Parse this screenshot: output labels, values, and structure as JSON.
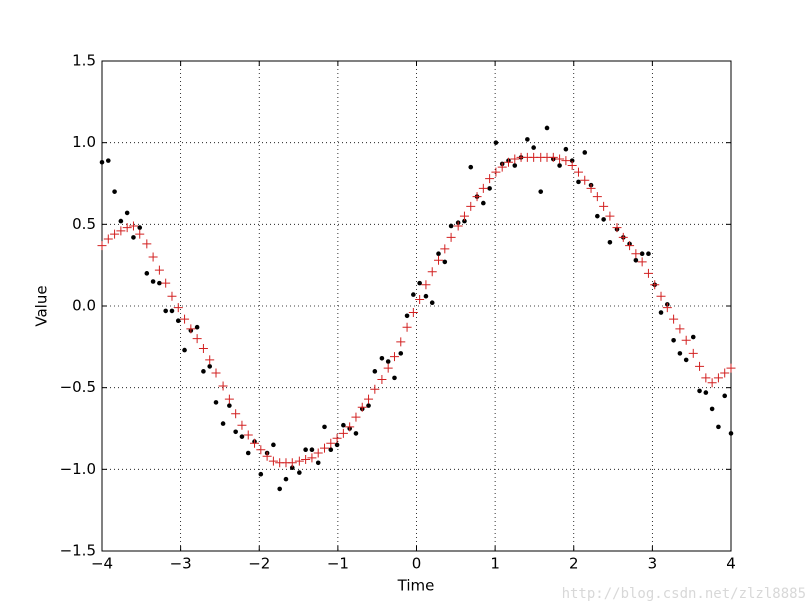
{
  "chart_data": {
    "type": "scatter",
    "x_label": "Time",
    "y_label": "Value",
    "watermark": "http://blog.csdn.net/zlzl8885",
    "x": [
      -4.0,
      -3.92,
      -3.84,
      -3.76,
      -3.68,
      -3.6,
      -3.52,
      -3.43,
      -3.35,
      -3.27,
      -3.19,
      -3.11,
      -3.03,
      -2.95,
      -2.87,
      -2.79,
      -2.71,
      -2.63,
      -2.55,
      -2.46,
      -2.38,
      -2.3,
      -2.22,
      -2.14,
      -2.06,
      -1.98,
      -1.9,
      -1.82,
      -1.74,
      -1.66,
      -1.58,
      -1.49,
      -1.41,
      -1.33,
      -1.25,
      -1.17,
      -1.09,
      -1.01,
      -0.93,
      -0.85,
      -0.77,
      -0.69,
      -0.61,
      -0.53,
      -0.44,
      -0.36,
      -0.28,
      -0.2,
      -0.12,
      -0.04,
      0.04,
      0.12,
      0.2,
      0.28,
      0.36,
      0.44,
      0.53,
      0.61,
      0.69,
      0.77,
      0.85,
      0.93,
      1.01,
      1.09,
      1.17,
      1.25,
      1.33,
      1.41,
      1.49,
      1.58,
      1.66,
      1.74,
      1.82,
      1.9,
      1.98,
      2.06,
      2.14,
      2.22,
      2.3,
      2.38,
      2.46,
      2.55,
      2.63,
      2.71,
      2.79,
      2.87,
      2.95,
      3.03,
      3.11,
      3.19,
      3.27,
      3.35,
      3.43,
      3.52,
      3.6,
      3.68,
      3.76,
      3.84,
      3.92,
      4.0
    ],
    "series": [
      {
        "color": "#000000",
        "marker": "dot",
        "values": [
          0.88,
          0.89,
          0.7,
          0.52,
          0.57,
          0.42,
          0.48,
          0.2,
          0.15,
          0.14,
          -0.03,
          -0.03,
          -0.09,
          -0.27,
          -0.15,
          -0.13,
          -0.4,
          -0.37,
          -0.59,
          -0.72,
          -0.61,
          -0.77,
          -0.8,
          -0.9,
          -0.83,
          -1.03,
          -0.9,
          -0.85,
          -1.12,
          -1.06,
          -0.99,
          -1.02,
          -0.88,
          -0.88,
          -0.96,
          -0.74,
          -0.88,
          -0.85,
          -0.73,
          -0.75,
          -0.78,
          -0.63,
          -0.61,
          -0.4,
          -0.32,
          -0.34,
          -0.44,
          -0.29,
          -0.06,
          0.07,
          0.14,
          0.06,
          0.02,
          0.32,
          0.27,
          0.49,
          0.51,
          0.52,
          0.85,
          0.67,
          0.63,
          0.72,
          1.0,
          0.87,
          0.89,
          0.86,
          0.91,
          1.02,
          0.97,
          0.7,
          1.09,
          0.9,
          0.86,
          0.96,
          0.89,
          0.76,
          0.94,
          0.74,
          0.55,
          0.53,
          0.39,
          0.47,
          0.42,
          0.38,
          0.28,
          0.32,
          0.32,
          0.13,
          -0.04,
          0.01,
          -0.21,
          -0.29,
          -0.33,
          -0.19,
          -0.52,
          -0.53,
          -0.63,
          -0.74,
          -0.55,
          -0.78
        ]
      },
      {
        "color": "#d22020",
        "marker": "plus",
        "values": [
          0.37,
          0.41,
          0.44,
          0.46,
          0.48,
          0.49,
          0.44,
          0.38,
          0.3,
          0.22,
          0.14,
          0.06,
          -0.01,
          -0.08,
          -0.14,
          -0.2,
          -0.26,
          -0.33,
          -0.41,
          -0.49,
          -0.57,
          -0.66,
          -0.73,
          -0.79,
          -0.84,
          -0.88,
          -0.92,
          -0.95,
          -0.96,
          -0.96,
          -0.96,
          -0.95,
          -0.94,
          -0.93,
          -0.9,
          -0.87,
          -0.84,
          -0.81,
          -0.78,
          -0.74,
          -0.68,
          -0.62,
          -0.57,
          -0.51,
          -0.45,
          -0.38,
          -0.31,
          -0.22,
          -0.13,
          -0.04,
          0.04,
          0.13,
          0.21,
          0.28,
          0.35,
          0.42,
          0.49,
          0.55,
          0.61,
          0.67,
          0.72,
          0.78,
          0.82,
          0.85,
          0.88,
          0.9,
          0.91,
          0.91,
          0.91,
          0.91,
          0.91,
          0.91,
          0.9,
          0.89,
          0.86,
          0.82,
          0.77,
          0.72,
          0.67,
          0.61,
          0.55,
          0.48,
          0.42,
          0.37,
          0.32,
          0.27,
          0.2,
          0.13,
          0.06,
          -0.01,
          -0.08,
          -0.14,
          -0.21,
          -0.29,
          -0.37,
          -0.44,
          -0.47,
          -0.44,
          -0.41,
          -0.38
        ]
      }
    ],
    "xlim": [
      -4,
      4
    ],
    "xticks": [
      {
        "value": -4,
        "label": "−4"
      },
      {
        "value": -3,
        "label": "−3"
      },
      {
        "value": -2,
        "label": "−2"
      },
      {
        "value": -1,
        "label": "−1"
      },
      0,
      1,
      2,
      3,
      4
    ],
    "ylim": [
      -1.5,
      1.5
    ],
    "yticks": [
      {
        "value": -1.5,
        "label": "−1.5"
      },
      {
        "value": -1.0,
        "label": "−1.0"
      },
      {
        "value": -0.5,
        "label": "−0.5"
      },
      {
        "value": 0,
        "label": "0.0"
      },
      0.5,
      {
        "value": 1.0,
        "label": "1.0"
      },
      1.5
    ],
    "grid": true
  }
}
